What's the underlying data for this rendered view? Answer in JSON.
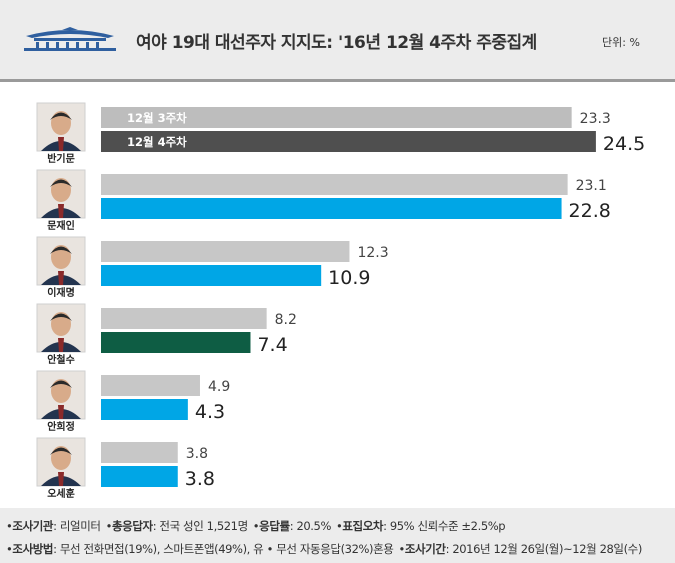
{
  "header": {
    "title": "여야 19대 대선주자 지지도: '16년 12월 4주차 주중집계",
    "unit": "단위: %",
    "logo_icon": "blue-house-roof-icon"
  },
  "chart_data": {
    "type": "bar",
    "orientation": "horizontal",
    "categories": [
      "반기문",
      "문재인",
      "이재명",
      "안철수",
      "안희정",
      "오세훈"
    ],
    "series": [
      {
        "name": "12월 3주차",
        "values": [
          23.3,
          23.1,
          12.3,
          8.2,
          4.9,
          3.8
        ]
      },
      {
        "name": "12월 4주차",
        "values": [
          24.5,
          22.8,
          10.9,
          7.4,
          4.3,
          3.8
        ]
      }
    ],
    "xlim": [
      0,
      26.5
    ],
    "grid": false,
    "legend": "inside-first-bars",
    "colors": {
      "prev_week": "#c7c7c7",
      "prev_week_first_row": "#bdbdbd",
      "current_week": "#00a6e6",
      "first_row_current": "#4f4f4f",
      "ahn_current": "#0e5d44"
    },
    "bar_colors_current": [
      "#4f4f4f",
      "#00a6e6",
      "#00a6e6",
      "#0e5d44",
      "#00a6e6",
      "#00a6e6"
    ]
  },
  "footer": {
    "line1": [
      {
        "label": "조사기관",
        "value": ": 리얼미터"
      },
      {
        "label": "총응답자",
        "value": ": 전국 성인 1,521명"
      },
      {
        "label": "응답률",
        "value": ": 20.5%"
      },
      {
        "label": "표집오차",
        "value": ": 95% 신뢰수준 ±2.5%p"
      }
    ],
    "line2": [
      {
        "label": "조사방법",
        "value": ": 무선 전화면접(19%), 스마트폰앱(49%), 유 • 무선 자동응답(32%)혼용"
      },
      {
        "label": "조사기간",
        "value": ": 2016년 12월 26일(월)~12월 28일(수)"
      }
    ]
  }
}
